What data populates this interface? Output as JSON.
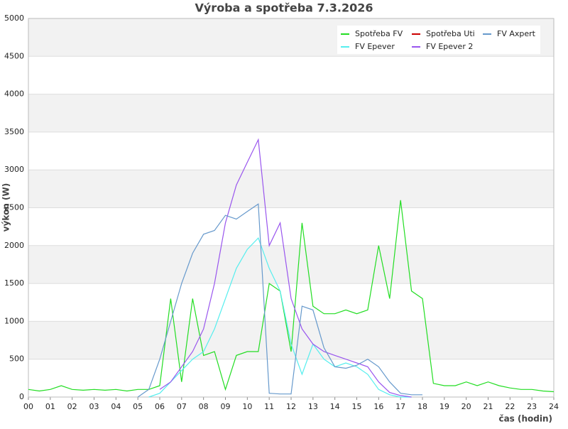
{
  "chart_data": {
    "type": "line",
    "title": "Výroba a spotřeba 7.3.2026",
    "ylabel": "výkon (W)",
    "xlabel": "čas (hodin)",
    "x": [
      0,
      0.5,
      1,
      1.5,
      2,
      2.5,
      3,
      3.5,
      4,
      4.5,
      5,
      5.5,
      6,
      6.5,
      7,
      7.5,
      8,
      8.5,
      9,
      9.5,
      10,
      10.5,
      11,
      11.5,
      12,
      12.5,
      13,
      13.5,
      14,
      14.5,
      15,
      15.5,
      16,
      16.5,
      17,
      17.5,
      18,
      18.5,
      19,
      19.5,
      20,
      20.5,
      21,
      21.5,
      22,
      22.5,
      23,
      23.5,
      24
    ],
    "series": [
      {
        "name": "Spotřeba FV",
        "color": "#22dd22",
        "values": [
          100,
          80,
          100,
          150,
          100,
          90,
          100,
          90,
          100,
          80,
          100,
          100,
          150,
          1300,
          200,
          1300,
          550,
          600,
          100,
          550,
          600,
          600,
          1500,
          1400,
          600,
          2300,
          1200,
          1100,
          1100,
          1150,
          1100,
          1150,
          2000,
          1300,
          2600,
          1400,
          1300,
          180,
          150,
          150,
          200,
          150,
          200,
          150,
          120,
          100,
          100,
          80,
          70
        ]
      },
      {
        "name": "FV Epever",
        "color": "#55eeee",
        "values": [
          null,
          null,
          null,
          null,
          null,
          null,
          null,
          null,
          null,
          null,
          null,
          0,
          50,
          200,
          350,
          500,
          600,
          900,
          1300,
          1700,
          1950,
          2100,
          1700,
          1400,
          700,
          300,
          700,
          500,
          400,
          450,
          400,
          300,
          100,
          30,
          0,
          0,
          null,
          null,
          null,
          null,
          null,
          null,
          null,
          null,
          null,
          null,
          null,
          null,
          null
        ]
      },
      {
        "name": "Spotřeba Uti",
        "color": "#cc0000",
        "values": [
          null,
          null,
          null,
          null,
          null,
          null,
          null,
          null,
          null,
          null,
          null,
          null,
          null,
          null,
          null,
          null,
          null,
          null,
          null,
          null,
          null,
          null,
          null,
          null,
          null,
          null,
          null,
          null,
          null,
          null,
          null,
          null,
          null,
          null,
          null,
          null,
          null,
          null,
          null,
          null,
          null,
          null,
          null,
          null,
          null,
          null,
          null,
          null,
          null
        ]
      },
      {
        "name": "FV Epever 2",
        "color": "#9955ee",
        "values": [
          null,
          null,
          null,
          null,
          null,
          null,
          null,
          null,
          null,
          null,
          null,
          null,
          100,
          200,
          400,
          600,
          900,
          1500,
          2300,
          2800,
          3100,
          3400,
          2000,
          2300,
          1300,
          900,
          700,
          600,
          550,
          500,
          450,
          400,
          200,
          60,
          20,
          0,
          null,
          null,
          null,
          null,
          null,
          null,
          null,
          null,
          null,
          null,
          null,
          null,
          null
        ]
      },
      {
        "name": "FV Axpert",
        "color": "#6699cc",
        "values": [
          null,
          null,
          null,
          null,
          null,
          null,
          null,
          null,
          null,
          null,
          0,
          100,
          500,
          1000,
          1500,
          1900,
          2150,
          2200,
          2400,
          2350,
          2450,
          2550,
          50,
          40,
          40,
          1200,
          1150,
          650,
          400,
          380,
          420,
          500,
          400,
          200,
          50,
          30,
          30,
          null,
          null,
          null,
          null,
          null,
          null,
          null,
          null,
          null,
          null,
          null,
          null
        ]
      }
    ],
    "xlim": [
      0,
      24
    ],
    "xticks": [
      {
        "value": 0,
        "label": "00"
      },
      {
        "value": 1,
        "label": "01"
      },
      {
        "value": 2,
        "label": "02"
      },
      {
        "value": 3,
        "label": "03"
      },
      {
        "value": 4,
        "label": "04"
      },
      {
        "value": 5,
        "label": "05"
      },
      {
        "value": 6,
        "label": "06"
      },
      {
        "value": 7,
        "label": "07"
      },
      {
        "value": 8,
        "label": "08"
      },
      {
        "value": 9,
        "label": "09"
      },
      10,
      11,
      12,
      13,
      14,
      15,
      16,
      17,
      18,
      19,
      20,
      21,
      22,
      23,
      24
    ],
    "ylim": [
      0,
      5000
    ],
    "yticks": [
      0,
      500,
      1000,
      1500,
      2000,
      2500,
      3000,
      3500,
      4000,
      4500,
      5000
    ],
    "grid": true
  }
}
